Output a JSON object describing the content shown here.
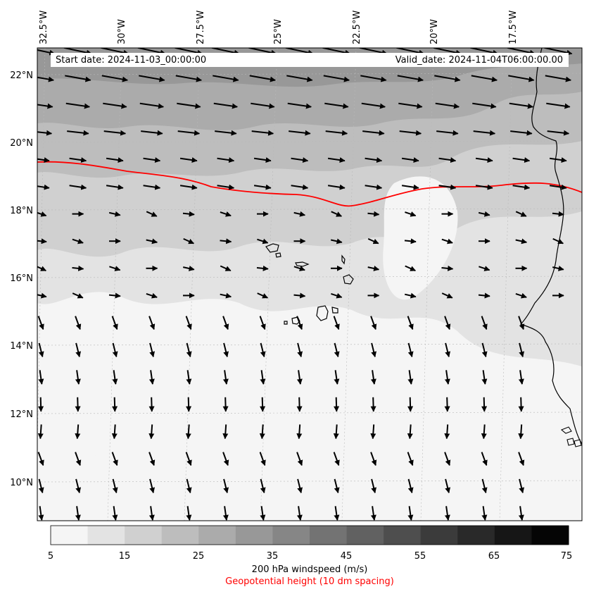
{
  "header": {
    "start_date": "Start date: 2024-11-03_00:00:00",
    "valid_date": "Valid_date: 2024-11-04T06:00:00.00"
  },
  "map": {
    "longitude_labels": [
      "32.5°W",
      "30°W",
      "27.5°W",
      "25°W",
      "22.5°W",
      "20°W",
      "17.5°W"
    ],
    "latitude_labels": [
      "22°N",
      "20°N",
      "18°N",
      "16°N",
      "14°N",
      "12°N",
      "10°N"
    ],
    "contour_color": "#ff0000",
    "coastline_color": "#000000",
    "vector_color": "#000000"
  },
  "colorbar": {
    "ticks": [
      "5",
      "15",
      "25",
      "35",
      "45",
      "55",
      "65",
      "75"
    ],
    "colors": [
      "#f5f5f5",
      "#e3e3e3",
      "#d0d0d0",
      "#bdbdbd",
      "#ababab",
      "#989898",
      "#868686",
      "#737373",
      "#616161",
      "#4e4e4e",
      "#3b3b3b",
      "#292929",
      "#161616",
      "#050505"
    ],
    "label": "200 hPa windspeed (m/s)",
    "contour_label": "Geopotential height (10 dm spacing)"
  }
}
